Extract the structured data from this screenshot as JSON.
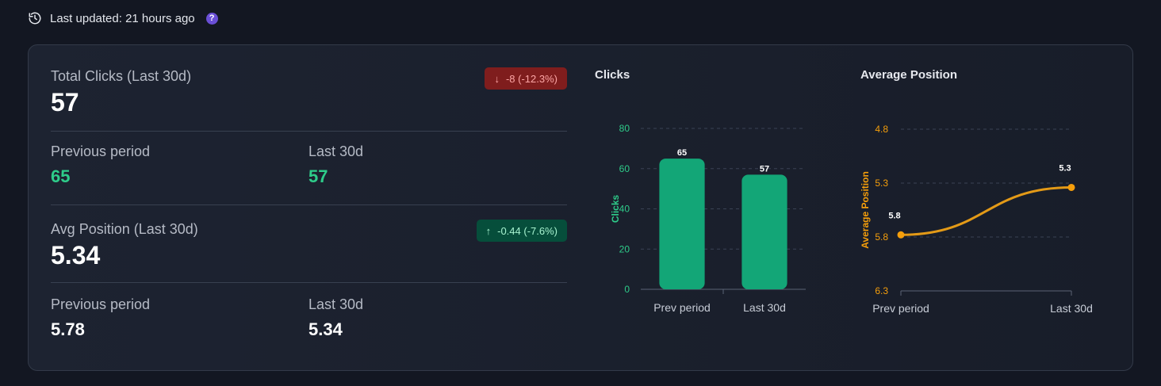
{
  "header": {
    "last_updated": "Last updated: 21 hours ago",
    "help": "?"
  },
  "clicks_block": {
    "title": "Total Clicks (Last 30d)",
    "value": "57",
    "badge": "-8 (-12.3%)",
    "badge_arrow": "↓",
    "prev_label": "Previous period",
    "prev_value": "65",
    "curr_label": "Last 30d",
    "curr_value": "57"
  },
  "position_block": {
    "title": "Avg Position (Last 30d)",
    "value": "5.34",
    "badge": "-0.44 (-7.6%)",
    "badge_arrow": "↑",
    "prev_label": "Previous period",
    "prev_value": "5.78",
    "curr_label": "Last 30d",
    "curr_value": "5.34"
  },
  "colors": {
    "bar": "#13a677",
    "line": "#e39a17",
    "clicks_axis": "#2ecc8a",
    "position_axis": "#f59e0b"
  },
  "chart_data": [
    {
      "type": "bar",
      "title": "Clicks",
      "categories": [
        "Prev period",
        "Last 30d"
      ],
      "values": [
        65,
        57
      ],
      "data_labels": [
        "65",
        "57"
      ],
      "ylabel": "Clicks",
      "ylim": [
        0,
        80
      ],
      "yticks": [
        0,
        20,
        40,
        60,
        80
      ],
      "grid": true
    },
    {
      "type": "line",
      "title": "Average Position",
      "categories": [
        "Prev period",
        "Last 30d"
      ],
      "values": [
        5.78,
        5.34
      ],
      "data_labels": [
        "5.8",
        "5.3"
      ],
      "ylabel": "Average Position",
      "ylim": [
        4.8,
        6.3
      ],
      "y_reversed": true,
      "yticks": [
        4.8,
        5.3,
        5.8,
        6.3
      ],
      "grid": true
    }
  ]
}
